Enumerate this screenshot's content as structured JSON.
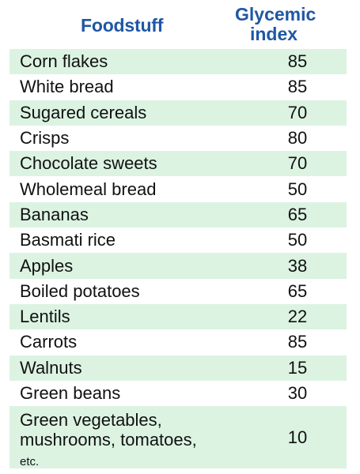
{
  "header": {
    "food_label": "Foodstuff",
    "gi_label_line1": "Glycemic",
    "gi_label_line2": "index"
  },
  "colors": {
    "header_text": "#1f57a4",
    "row_band": "#dcf3e2",
    "row_alt": "#ffffff",
    "body_text": "#111111"
  },
  "chart_data": {
    "type": "table",
    "columns": [
      "Foodstuff",
      "Glycemic index"
    ],
    "rows": [
      {
        "food": "Corn flakes",
        "gi": "85"
      },
      {
        "food": "White bread",
        "gi": "85"
      },
      {
        "food": "Sugared cereals",
        "gi": "70"
      },
      {
        "food": "Crisps",
        "gi": "80"
      },
      {
        "food": "Chocolate sweets",
        "gi": "70"
      },
      {
        "food": "Wholemeal bread",
        "gi": "50"
      },
      {
        "food": "Bananas",
        "gi": "65"
      },
      {
        "food": "Basmati rice",
        "gi": "50"
      },
      {
        "food": "Apples",
        "gi": "38"
      },
      {
        "food": "Boiled potatoes",
        "gi": "65"
      },
      {
        "food": "Lentils",
        "gi": "22"
      },
      {
        "food": "Carrots",
        "gi": "85"
      },
      {
        "food": "Walnuts",
        "gi": "15"
      },
      {
        "food": "Green beans",
        "gi": "30"
      },
      {
        "food": "Green vegetables,",
        "food_line2": "mushrooms, tomatoes,",
        "food_line3": "etc.",
        "gi": "10"
      }
    ]
  }
}
